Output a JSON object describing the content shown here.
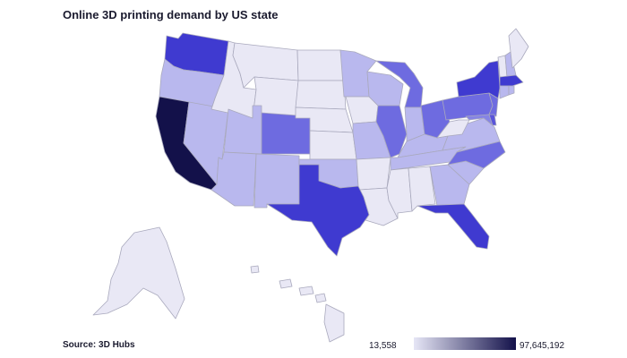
{
  "title": "Online 3D printing demand by US state",
  "source": "Source: 3D Hubs",
  "legend": {
    "min_label": "13,558",
    "max_label": "97,645,192",
    "color_low": "#e6e6f6",
    "color_high": "#13114a"
  },
  "colors": {
    "stroke": "#a9a9bd",
    "level_1": "#e9e8f5",
    "level_2": "#d9d8f2",
    "level_3": "#b9b8ee",
    "level_4": "#a9a8ec",
    "level_5": "#8684e4",
    "level_6": "#6e6be0",
    "level_7": "#5a55da",
    "level_8": "#3f3ad0",
    "level_9": "#13114a"
  },
  "states": [
    {
      "id": "WA",
      "level": 8
    },
    {
      "id": "OR",
      "level": 3
    },
    {
      "id": "CA",
      "level": 9
    },
    {
      "id": "NV",
      "level": 3
    },
    {
      "id": "ID",
      "level": 1
    },
    {
      "id": "MT",
      "level": 1
    },
    {
      "id": "WY",
      "level": 1
    },
    {
      "id": "UT",
      "level": 3
    },
    {
      "id": "AZ",
      "level": 3
    },
    {
      "id": "CO",
      "level": 6
    },
    {
      "id": "NM",
      "level": 3
    },
    {
      "id": "ND",
      "level": 1
    },
    {
      "id": "SD",
      "level": 1
    },
    {
      "id": "NE",
      "level": 1
    },
    {
      "id": "KS",
      "level": 1
    },
    {
      "id": "OK",
      "level": 3
    },
    {
      "id": "TX",
      "level": 8
    },
    {
      "id": "MN",
      "level": 3
    },
    {
      "id": "IA",
      "level": 1
    },
    {
      "id": "MO",
      "level": 3
    },
    {
      "id": "AR",
      "level": 1
    },
    {
      "id": "LA",
      "level": 1
    },
    {
      "id": "WI",
      "level": 3
    },
    {
      "id": "IL",
      "level": 6
    },
    {
      "id": "MI",
      "level": 6
    },
    {
      "id": "IN",
      "level": 3
    },
    {
      "id": "OH",
      "level": 6
    },
    {
      "id": "KY",
      "level": 3
    },
    {
      "id": "TN",
      "level": 3
    },
    {
      "id": "MS",
      "level": 1
    },
    {
      "id": "AL",
      "level": 1
    },
    {
      "id": "GA",
      "level": 3
    },
    {
      "id": "FL",
      "level": 8
    },
    {
      "id": "SC",
      "level": 3
    },
    {
      "id": "NC",
      "level": 6
    },
    {
      "id": "VA",
      "level": 3
    },
    {
      "id": "WV",
      "level": 1
    },
    {
      "id": "PA",
      "level": 6
    },
    {
      "id": "NY",
      "level": 8
    },
    {
      "id": "NJ",
      "level": 6
    },
    {
      "id": "MD",
      "level": 5
    },
    {
      "id": "DE",
      "level": 7
    },
    {
      "id": "VT",
      "level": 1
    },
    {
      "id": "NH",
      "level": 3
    },
    {
      "id": "ME",
      "level": 1
    },
    {
      "id": "MA",
      "level": 8
    },
    {
      "id": "CT",
      "level": 3
    },
    {
      "id": "RI",
      "level": 3
    },
    {
      "id": "AK",
      "level": 1
    },
    {
      "id": "HI",
      "level": 1
    }
  ]
}
